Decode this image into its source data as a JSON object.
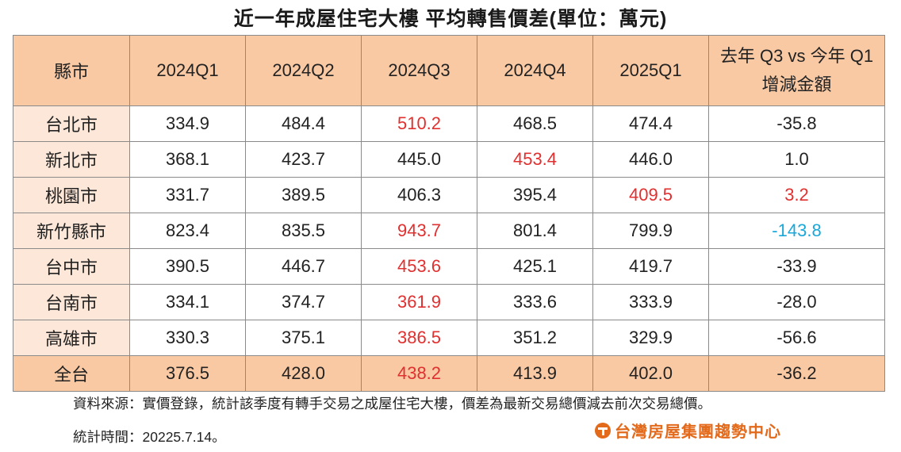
{
  "title": "近一年成屋住宅大樓  平均轉售價差(單位：萬元)",
  "chart_data": {
    "type": "table",
    "title": "近一年成屋住宅大樓  平均轉售價差(單位：萬元)",
    "columns": [
      "縣市",
      "2024Q1",
      "2024Q2",
      "2024Q3",
      "2024Q4",
      "2025Q1",
      "去年 Q3 vs 今年 Q1 增減金額"
    ],
    "header": {
      "city": "縣市",
      "q": [
        "2024Q1",
        "2024Q2",
        "2024Q3",
        "2024Q4",
        "2025Q1"
      ],
      "change_line1": "去年 Q3 vs 今年 Q1",
      "change_line2": "增減金額"
    },
    "rows": [
      {
        "city": "台北市",
        "values": [
          "334.9",
          "484.4",
          "510.2",
          "468.5",
          "474.4"
        ],
        "change": "-35.8",
        "highlight": 2,
        "change_color": "normal"
      },
      {
        "city": "新北市",
        "values": [
          "368.1",
          "423.7",
          "445.0",
          "453.4",
          "446.0"
        ],
        "change": "1.0",
        "highlight": 3,
        "change_color": "normal"
      },
      {
        "city": "桃園市",
        "values": [
          "331.7",
          "389.5",
          "406.3",
          "395.4",
          "409.5"
        ],
        "change": "3.2",
        "highlight": 4,
        "change_color": "red"
      },
      {
        "city": "新竹縣市",
        "values": [
          "823.4",
          "835.5",
          "943.7",
          "801.4",
          "799.9"
        ],
        "change": "-143.8",
        "highlight": 2,
        "change_color": "blue"
      },
      {
        "city": "台中市",
        "values": [
          "390.5",
          "446.7",
          "453.6",
          "425.1",
          "419.7"
        ],
        "change": "-33.9",
        "highlight": 2,
        "change_color": "normal"
      },
      {
        "city": "台南市",
        "values": [
          "334.1",
          "374.7",
          "361.9",
          "333.6",
          "333.9"
        ],
        "change": "-28.0",
        "highlight": 2,
        "change_color": "normal"
      },
      {
        "city": "高雄市",
        "values": [
          "330.3",
          "375.1",
          "386.5",
          "351.2",
          "329.9"
        ],
        "change": "-56.6",
        "highlight": 2,
        "change_color": "normal"
      }
    ],
    "total": {
      "city": "全台",
      "values": [
        "376.5",
        "428.0",
        "438.2",
        "413.9",
        "402.0"
      ],
      "change": "-36.2",
      "highlight": 2,
      "change_color": "normal"
    },
    "colors": {
      "header_bg": "#f9c9a4",
      "city_bg": "#fde7d8",
      "highlight_red": "#e0302f",
      "negative_blue": "#1aa7d9"
    }
  },
  "footer": {
    "source": "資料來源：實價登錄，統計該季度有轉手交易之成屋住宅大樓，價差為最新交易總價減去前次交易總價。",
    "date": "統計時間：20225.7.14。",
    "logo_text": "台灣房屋集團趨勢中心"
  }
}
